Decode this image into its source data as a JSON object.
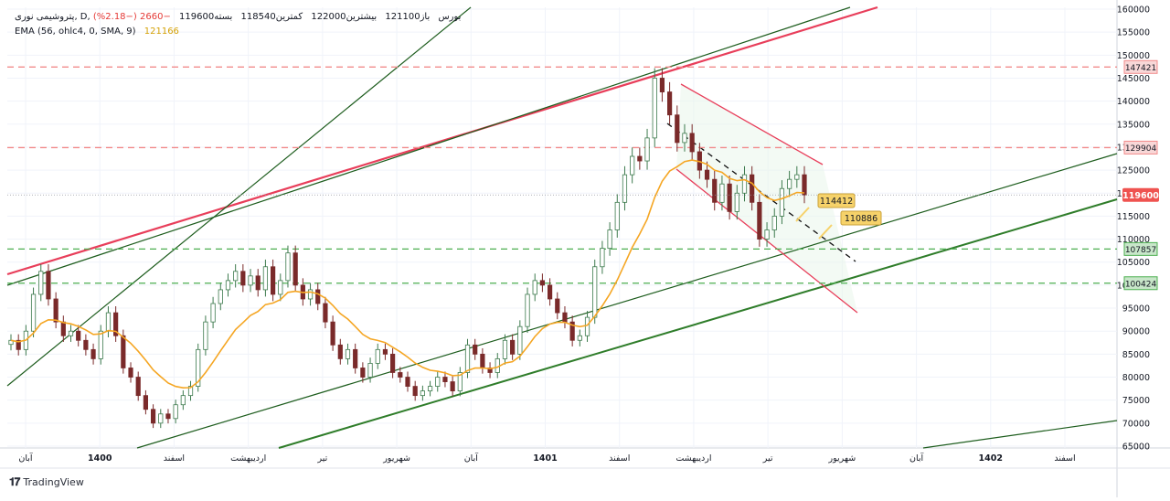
{
  "legend": {
    "symbol": "پتروشیمی نوری, D, بورس",
    "open": "باز121100",
    "high": "بیشترین122000",
    "low": "کمترین118540",
    "close": "بسته119600",
    "change": "−2660 (−2.18%)",
    "ema_label": "EMA (56, ohlc4, 0, SMA, 9)",
    "ema_value": "121166"
  },
  "brand": "TradingView",
  "colors": {
    "up": "#26a69a",
    "down": "#ef5350",
    "up_body": "#ffffff",
    "candle_up_border": "#3d7a4d",
    "candle_down": "#7a2a2a",
    "ema": "#f5a623",
    "red_line": "#e83e5a",
    "green_line": "#2f7d2a",
    "dark_green": "#1e5d1e",
    "label_red": "#f28b8b",
    "label_green": "#4caf50",
    "price_label_bg": "#ef5350",
    "callout_bg": "#f6d26a"
  },
  "chart_data": {
    "type": "candlestick",
    "price_axis": {
      "min": 65000,
      "max": 160000,
      "ticks": [
        "160000",
        "155000",
        "150000",
        "145000",
        "140000",
        "135000",
        "130000",
        "125000",
        "120000",
        "115000",
        "110000",
        "105000",
        "100000",
        "95000",
        "90000",
        "85000",
        "80000",
        "75000",
        "70000",
        "65000"
      ]
    },
    "time_axis": {
      "labels": [
        "آبان",
        "1400",
        "اسفند",
        "اردیبهشت",
        "تیر",
        "شهریور",
        "آبان",
        "1401",
        "اسفند",
        "اردیبهشت",
        "تیر",
        "شهریور",
        "آبان",
        "1402",
        "اسفند"
      ],
      "bold": [
        "1400",
        "1401",
        "1402"
      ]
    },
    "horizontal_levels": [
      {
        "value": 147421,
        "label": "147421",
        "color": "red"
      },
      {
        "value": 129904,
        "label": "129904",
        "color": "red"
      },
      {
        "value": 107857,
        "label": "107857",
        "color": "green"
      },
      {
        "value": 100424,
        "label": "100424",
        "color": "green"
      }
    ],
    "last_price": {
      "value": 119600,
      "label": "119600"
    },
    "callouts": [
      "114412",
      "110886"
    ],
    "ema": {
      "period": 56,
      "last": 121166
    },
    "close_series": [
      88000,
      86000,
      90000,
      98000,
      103000,
      97000,
      92000,
      89000,
      90000,
      88000,
      86000,
      84000,
      90000,
      94000,
      89000,
      82000,
      80000,
      76000,
      73000,
      70000,
      72000,
      71000,
      74000,
      76000,
      78000,
      86000,
      92000,
      96000,
      99000,
      101000,
      103000,
      100000,
      102000,
      99000,
      104000,
      98000,
      101000,
      107000,
      100000,
      97000,
      99000,
      96000,
      92000,
      87000,
      84000,
      86000,
      82000,
      80000,
      83000,
      86000,
      85000,
      81000,
      80000,
      78000,
      76000,
      77000,
      78000,
      80000,
      79000,
      77000,
      81000,
      87000,
      85000,
      82000,
      81000,
      84000,
      88000,
      85000,
      91000,
      98000,
      101000,
      100000,
      97000,
      94000,
      92000,
      88000,
      89000,
      93000,
      104000,
      108000,
      112000,
      118000,
      124000,
      128000,
      127000,
      132000,
      145000,
      142000,
      137000,
      131000,
      133000,
      129000,
      125000,
      123000,
      118000,
      122000,
      116000,
      120000,
      124000,
      118000,
      110000,
      112000,
      115000,
      121000,
      123000,
      124000,
      119600
    ]
  }
}
